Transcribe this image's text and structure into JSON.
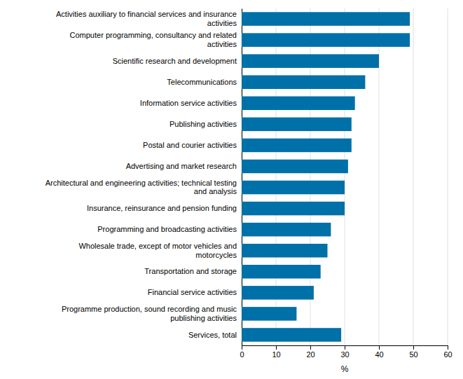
{
  "chart_data": {
    "type": "bar",
    "orientation": "horizontal",
    "categories": [
      "Services, total",
      "Programme production, sound recording and music\npublishing activities",
      "Financial service activities",
      "Transportation and storage",
      "Wholesale trade, except of motor vehicles and\nmotorcycles",
      "Programming and broadcasting activities",
      "Insurance, reinsurance and pension funding",
      "Architectural and engineering activities; technical testing\nand analysis",
      "Advertising and market research",
      "Postal and courier activities",
      "Publishing activities",
      "Information service activities",
      "Telecommunications",
      "Scientific research and development",
      "Computer programming, consultancy and related\nactivities",
      "Activities auxiliary to financial services and insurance\nactivities"
    ],
    "values": [
      29,
      16,
      21,
      23,
      25,
      26,
      30,
      30,
      31,
      32,
      32,
      33,
      36,
      40,
      49,
      49
    ],
    "color": "#0070a8",
    "xlim": [
      0,
      60
    ],
    "xticks": [
      0,
      10,
      20,
      30,
      40,
      50,
      60
    ],
    "xlabel": "%",
    "grid": true
  }
}
